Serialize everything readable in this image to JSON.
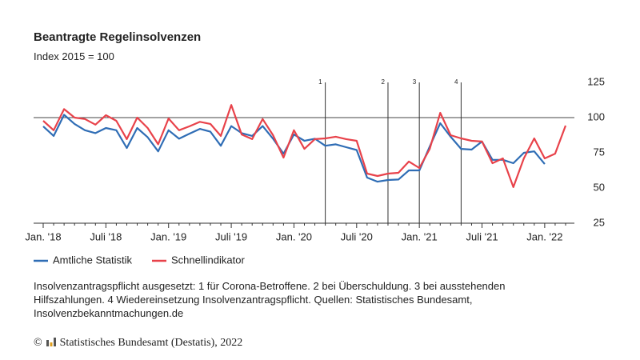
{
  "chart_data": {
    "type": "line",
    "title": "Beantragte Regelinsolvenzen",
    "subtitle": "Index 2015 = 100",
    "categories": [
      "Jan. '18",
      null,
      null,
      null,
      null,
      null,
      "Juli '18",
      null,
      null,
      null,
      null,
      null,
      "Jan. '19",
      null,
      null,
      null,
      null,
      null,
      "Juli '19",
      null,
      null,
      null,
      null,
      null,
      "Jan. '20",
      null,
      null,
      null,
      null,
      null,
      "Juli '20",
      null,
      null,
      null,
      null,
      null,
      "Jan. '21",
      null,
      null,
      null,
      null,
      null,
      "Juli '21",
      null,
      null,
      null,
      null,
      null,
      "Jan. '22",
      null,
      null
    ],
    "series": [
      {
        "name": "Amtliche Statistik",
        "color": "#2f6db5",
        "values": [
          93.8,
          87,
          102,
          95.5,
          91,
          89,
          92.6,
          91,
          78.4,
          92.6,
          86,
          76,
          91,
          85,
          88.6,
          92,
          90,
          80,
          94,
          89,
          87,
          94,
          85,
          74.4,
          88,
          83.5,
          85,
          80,
          81,
          79,
          77,
          57.4,
          54.5,
          55.7,
          56,
          62.5,
          62.5,
          79.5,
          96,
          86.4,
          77.8,
          77.3,
          83,
          70,
          70,
          67.6,
          75,
          76,
          67,
          null,
          null
        ]
      },
      {
        "name": "Schnellindikator",
        "color": "#e8424a",
        "values": [
          97.7,
          91,
          106,
          100,
          99,
          95,
          101.7,
          97.7,
          84.7,
          100,
          92.6,
          81,
          99.4,
          91,
          93.8,
          97,
          95.5,
          87,
          109,
          88,
          84.7,
          99,
          87.5,
          71.6,
          91,
          77.8,
          84.7,
          85.2,
          86.4,
          84.7,
          83.5,
          60.2,
          58.5,
          60.2,
          60.8,
          68.8,
          64.2,
          77.8,
          103.4,
          87.5,
          85.2,
          83.5,
          83,
          67.6,
          71,
          50.6,
          71,
          85.2,
          71,
          74.4,
          94.3
        ]
      }
    ],
    "ylim": [
      25,
      125
    ],
    "yticks": [
      25,
      50,
      75,
      100,
      125
    ],
    "reference_line": 100,
    "annotations": [
      {
        "label": "1",
        "category_index": 27
      },
      {
        "label": "2",
        "category_index": 33
      },
      {
        "label": "3",
        "category_index": 36
      },
      {
        "label": "4",
        "category_index": 40
      }
    ],
    "note": "Insolvenzantragspflicht ausgesetzt: 1 für Corona-Betroffene. 2 bei Überschuldung. 3 bei ausstehenden Hilfszahlungen. 4 Wiedereinsetzung Insolvenzantragspflicht. Quellen: Statistisches Bundesamt, Insolvenzbekanntmachungen.de",
    "source": "Statistisches Bundesamt (Destatis), 2022"
  }
}
